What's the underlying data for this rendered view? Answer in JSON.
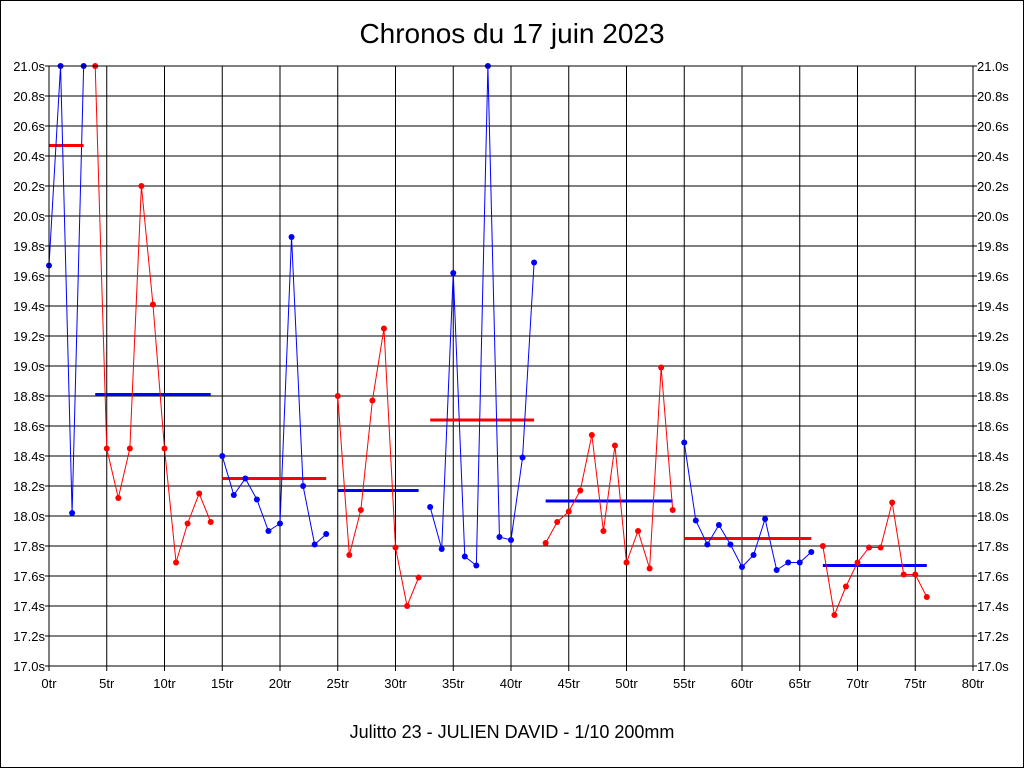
{
  "title": "Chronos du 17 juin 2023",
  "footer": "Julitto 23 - JULIEN DAVID - 1/10 200mm",
  "colors": {
    "blue": "#0000ff",
    "red": "#ff0000",
    "grid": "#000000",
    "axis": "#000000"
  },
  "chart_data": {
    "type": "line",
    "title": "Chronos du 17 juin 2023",
    "xlabel": "",
    "ylabel": "",
    "xlim": [
      0,
      80
    ],
    "ylim": [
      17.0,
      21.0
    ],
    "grid": true,
    "x_ticks": [
      0,
      5,
      10,
      15,
      20,
      25,
      30,
      35,
      40,
      45,
      50,
      55,
      60,
      65,
      70,
      75,
      80
    ],
    "x_tick_labels": [
      "0tr",
      "5tr",
      "10tr",
      "15tr",
      "20tr",
      "25tr",
      "30tr",
      "35tr",
      "40tr",
      "45tr",
      "50tr",
      "55tr",
      "60tr",
      "65tr",
      "70tr",
      "75tr",
      "80tr"
    ],
    "y_ticks": [
      17.0,
      17.2,
      17.4,
      17.6,
      17.8,
      18.0,
      18.2,
      18.4,
      18.6,
      18.8,
      19.0,
      19.2,
      19.4,
      19.6,
      19.8,
      20.0,
      20.2,
      20.4,
      20.6,
      20.8,
      21.0
    ],
    "y_tick_labels": [
      "17.0s",
      "17.2s",
      "17.4s",
      "17.6s",
      "17.8s",
      "18.0s",
      "18.2s",
      "18.4s",
      "18.6s",
      "18.8s",
      "19.0s",
      "19.2s",
      "19.4s",
      "19.6s",
      "19.8s",
      "20.0s",
      "20.2s",
      "20.4s",
      "20.6s",
      "20.8s",
      "21.0s"
    ],
    "series": [
      {
        "color": "#0000ff",
        "x": [
          0,
          1,
          2,
          3
        ],
        "y": [
          19.67,
          21.0,
          18.02,
          21.0
        ]
      },
      {
        "color": "#ff0000",
        "x": [
          4,
          5,
          6,
          7,
          8,
          9,
          10,
          11,
          12,
          13,
          14
        ],
        "y": [
          21.0,
          18.45,
          18.12,
          18.45,
          20.2,
          19.41,
          18.45,
          17.69,
          17.95,
          18.15,
          17.96
        ]
      },
      {
        "color": "#0000ff",
        "x": [
          15,
          16,
          17,
          18,
          19,
          20,
          21,
          22,
          23,
          24
        ],
        "y": [
          18.4,
          18.14,
          18.25,
          18.11,
          17.9,
          17.95,
          19.86,
          18.2,
          17.81,
          17.88
        ]
      },
      {
        "color": "#ff0000",
        "x": [
          25,
          26,
          27,
          28,
          29,
          30,
          31,
          32
        ],
        "y": [
          18.8,
          17.74,
          18.04,
          18.77,
          19.25,
          17.79,
          17.4,
          17.59
        ]
      },
      {
        "color": "#0000ff",
        "x": [
          33,
          34,
          35,
          36,
          37,
          38,
          39,
          40,
          41,
          42
        ],
        "y": [
          18.06,
          17.78,
          19.62,
          17.73,
          17.67,
          21.0,
          17.86,
          17.84,
          18.39,
          19.69
        ]
      },
      {
        "color": "#ff0000",
        "x": [
          43,
          44,
          45,
          46,
          47,
          48,
          49,
          50,
          51,
          52,
          53,
          54
        ],
        "y": [
          17.82,
          17.96,
          18.03,
          18.17,
          18.54,
          17.9,
          18.47,
          17.69,
          17.9,
          17.65,
          18.99,
          18.04
        ]
      },
      {
        "color": "#0000ff",
        "x": [
          55,
          56,
          57,
          58,
          59,
          60,
          61,
          62,
          63,
          64,
          65,
          66
        ],
        "y": [
          18.49,
          17.97,
          17.81,
          17.94,
          17.81,
          17.66,
          17.74,
          17.98,
          17.64,
          17.69,
          17.69,
          17.76
        ]
      },
      {
        "color": "#ff0000",
        "x": [
          67,
          68,
          69,
          70,
          71,
          72,
          73,
          74,
          75,
          76
        ],
        "y": [
          17.8,
          17.34,
          17.53,
          17.69,
          17.79,
          17.79,
          18.09,
          17.61,
          17.61,
          17.46
        ]
      }
    ],
    "averages": [
      {
        "color": "#ff0000",
        "x_start": 0,
        "x_end": 3,
        "y": 20.47
      },
      {
        "color": "#0000ff",
        "x_start": 4,
        "x_end": 14,
        "y": 18.81
      },
      {
        "color": "#ff0000",
        "x_start": 15,
        "x_end": 24,
        "y": 18.25
      },
      {
        "color": "#0000ff",
        "x_start": 25,
        "x_end": 32,
        "y": 18.17
      },
      {
        "color": "#ff0000",
        "x_start": 33,
        "x_end": 42,
        "y": 18.64
      },
      {
        "color": "#0000ff",
        "x_start": 43,
        "x_end": 54,
        "y": 18.1
      },
      {
        "color": "#ff0000",
        "x_start": 55,
        "x_end": 66,
        "y": 17.85
      },
      {
        "color": "#0000ff",
        "x_start": 67,
        "x_end": 76,
        "y": 17.67
      }
    ]
  }
}
